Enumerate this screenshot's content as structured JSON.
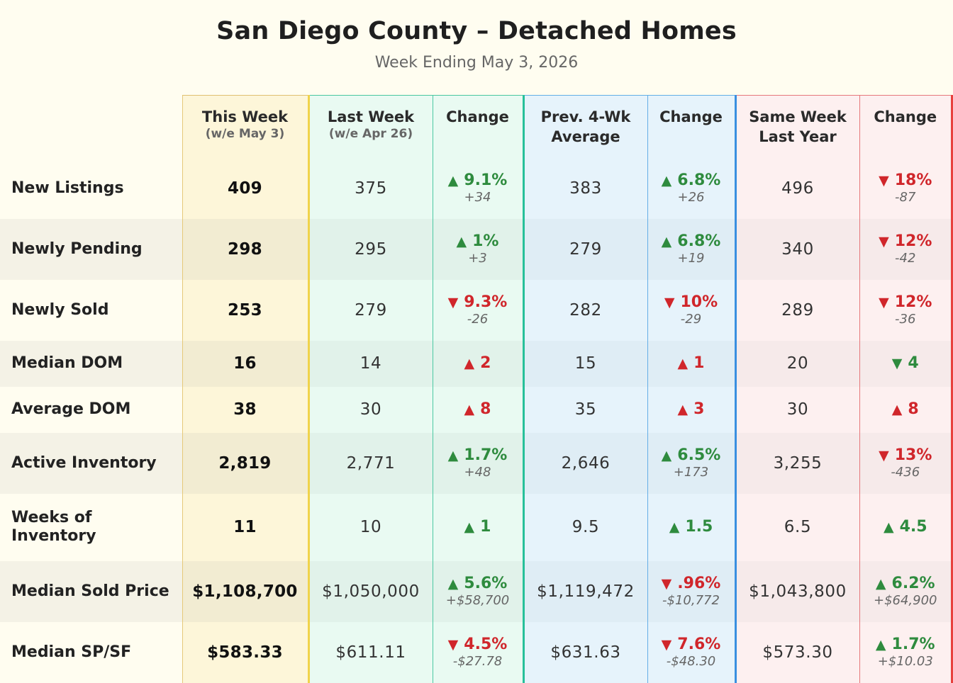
{
  "title": "San Diego County – Detached Homes",
  "subtitle": "Week Ending May 3, 2026",
  "colors": {
    "up_good": "#2e8b3e",
    "bad": "#d0262b"
  },
  "headers": [
    {
      "label": "This Week",
      "sub": "(w/e May 3)"
    },
    {
      "label": "Last Week",
      "sub": "(w/e Apr 26)"
    },
    {
      "label": "Change",
      "sub": ""
    },
    {
      "label": "Prev. 4-Wk Average",
      "sub": ""
    },
    {
      "label": "Change",
      "sub": ""
    },
    {
      "label": "Same Week Last Year",
      "sub": ""
    },
    {
      "label": "Change",
      "sub": ""
    }
  ],
  "rows": [
    {
      "label": "New Listings",
      "this": "409",
      "last": "375",
      "c1": {
        "dir": "up",
        "tone": "good",
        "pct": "9.1%",
        "abs": "+34"
      },
      "avg": "383",
      "c2": {
        "dir": "up",
        "tone": "good",
        "pct": "6.8%",
        "abs": "+26"
      },
      "ly": "496",
      "c3": {
        "dir": "down",
        "tone": "bad",
        "pct": "18%",
        "abs": "-87"
      }
    },
    {
      "label": "Newly Pending",
      "this": "298",
      "last": "295",
      "c1": {
        "dir": "up",
        "tone": "good",
        "pct": "1%",
        "abs": "+3"
      },
      "avg": "279",
      "c2": {
        "dir": "up",
        "tone": "good",
        "pct": "6.8%",
        "abs": "+19"
      },
      "ly": "340",
      "c3": {
        "dir": "down",
        "tone": "bad",
        "pct": "12%",
        "abs": "-42"
      }
    },
    {
      "label": "Newly Sold",
      "this": "253",
      "last": "279",
      "c1": {
        "dir": "down",
        "tone": "bad",
        "pct": "9.3%",
        "abs": "-26"
      },
      "avg": "282",
      "c2": {
        "dir": "down",
        "tone": "bad",
        "pct": "10%",
        "abs": "-29"
      },
      "ly": "289",
      "c3": {
        "dir": "down",
        "tone": "bad",
        "pct": "12%",
        "abs": "-36"
      }
    },
    {
      "label": "Median DOM",
      "this": "16",
      "last": "14",
      "c1": {
        "dir": "up",
        "tone": "bad",
        "pct": "2",
        "abs": ""
      },
      "avg": "15",
      "c2": {
        "dir": "up",
        "tone": "bad",
        "pct": "1",
        "abs": ""
      },
      "ly": "20",
      "c3": {
        "dir": "down",
        "tone": "good",
        "pct": "4",
        "abs": ""
      }
    },
    {
      "label": "Average DOM",
      "this": "38",
      "last": "30",
      "c1": {
        "dir": "up",
        "tone": "bad",
        "pct": "8",
        "abs": ""
      },
      "avg": "35",
      "c2": {
        "dir": "up",
        "tone": "bad",
        "pct": "3",
        "abs": ""
      },
      "ly": "30",
      "c3": {
        "dir": "up",
        "tone": "bad",
        "pct": "8",
        "abs": ""
      }
    },
    {
      "label": "Active Inventory",
      "this": "2,819",
      "last": "2,771",
      "c1": {
        "dir": "up",
        "tone": "good",
        "pct": "1.7%",
        "abs": "+48"
      },
      "avg": "2,646",
      "c2": {
        "dir": "up",
        "tone": "good",
        "pct": "6.5%",
        "abs": "+173"
      },
      "ly": "3,255",
      "c3": {
        "dir": "down",
        "tone": "bad",
        "pct": "13%",
        "abs": "-436"
      }
    },
    {
      "label": "Weeks of Inventory",
      "this": "11",
      "last": "10",
      "c1": {
        "dir": "up",
        "tone": "good",
        "pct": "1",
        "abs": ""
      },
      "avg": "9.5",
      "c2": {
        "dir": "up",
        "tone": "good",
        "pct": "1.5",
        "abs": ""
      },
      "ly": "6.5",
      "c3": {
        "dir": "up",
        "tone": "good",
        "pct": "4.5",
        "abs": ""
      }
    },
    {
      "label": "Median Sold Price",
      "this": "$1,108,700",
      "last": "$1,050,000",
      "c1": {
        "dir": "up",
        "tone": "good",
        "pct": "5.6%",
        "abs": "+$58,700"
      },
      "avg": "$1,119,472",
      "c2": {
        "dir": "down",
        "tone": "bad",
        "pct": ".96%",
        "abs": "-$10,772"
      },
      "ly": "$1,043,800",
      "c3": {
        "dir": "up",
        "tone": "good",
        "pct": "6.2%",
        "abs": "+$64,900"
      }
    },
    {
      "label": "Median SP/SF",
      "this": "$583.33",
      "last": "$611.11",
      "c1": {
        "dir": "down",
        "tone": "bad",
        "pct": "4.5%",
        "abs": "-$27.78"
      },
      "avg": "$631.63",
      "c2": {
        "dir": "down",
        "tone": "bad",
        "pct": "7.6%",
        "abs": "-$48.30"
      },
      "ly": "$573.30",
      "c3": {
        "dir": "up",
        "tone": "good",
        "pct": "1.7%",
        "abs": "+$10.03"
      }
    }
  ]
}
